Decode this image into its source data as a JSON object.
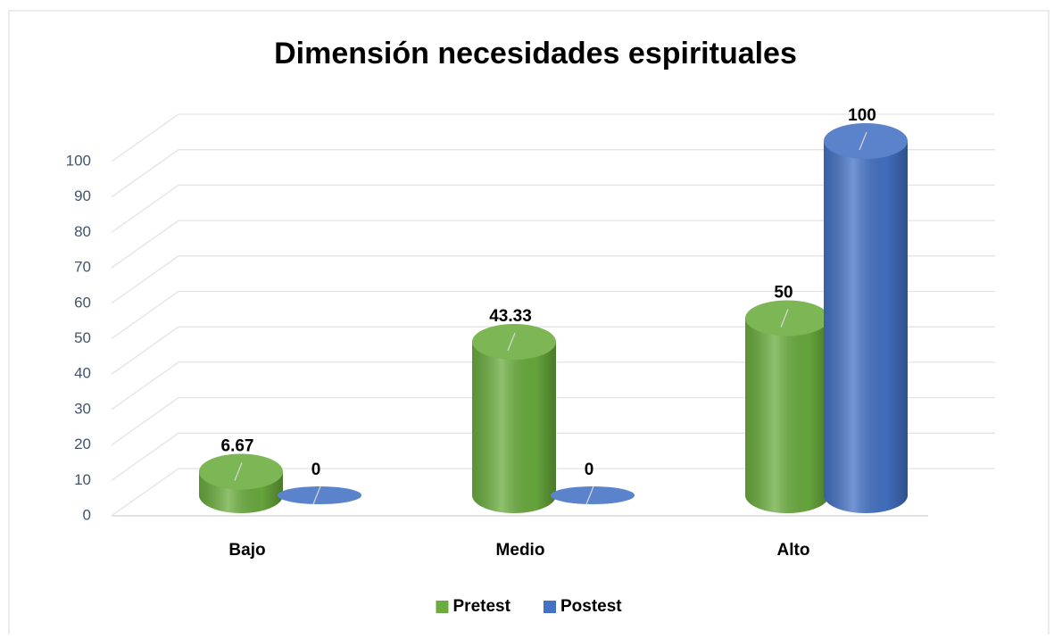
{
  "chart_data": {
    "type": "bar",
    "title": "Dimensión necesidades espirituales",
    "categories": [
      "Bajo",
      "Medio",
      "Alto"
    ],
    "series": [
      {
        "name": "Pretest",
        "color": "#6aac3e",
        "values": [
          6.67,
          43.33,
          50
        ]
      },
      {
        "name": "Postest",
        "color": "#4472c4",
        "values": [
          0,
          0,
          100
        ]
      }
    ],
    "ylim": [
      0,
      100
    ],
    "yticks": [
      0,
      10,
      20,
      30,
      40,
      50,
      60,
      70,
      80,
      90,
      100
    ],
    "grid": true,
    "legend": "bottom"
  }
}
